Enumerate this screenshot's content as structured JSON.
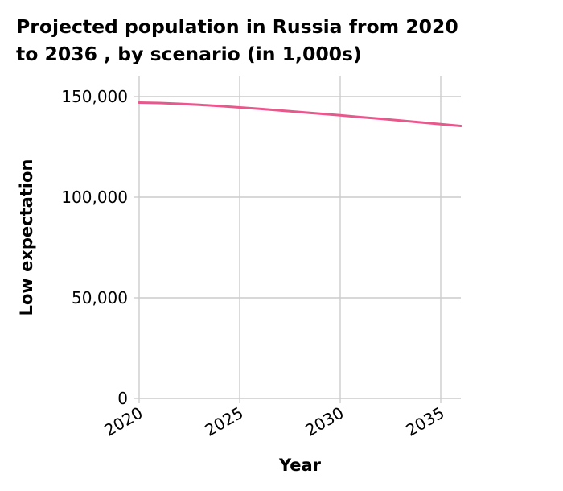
{
  "chart_data": {
    "type": "line",
    "title_lines": [
      "Projected population in Russia from 2020",
      "to 2036 , by scenario (in 1,000s)"
    ],
    "xlabel": "Year",
    "ylabel": "Low expectation",
    "xlim": [
      2020,
      2036
    ],
    "ylim": [
      0,
      150000
    ],
    "x_ticks": [
      2020,
      2025,
      2030,
      2035
    ],
    "x_tick_labels": [
      "2020",
      "2025",
      "2030",
      "2035"
    ],
    "y_ticks": [
      0,
      50000,
      100000,
      150000
    ],
    "y_tick_labels": [
      "0",
      "50,000",
      "100,000",
      "150,000"
    ],
    "grid": true,
    "legend": "none",
    "line_color": "#e8588c",
    "series": [
      {
        "x": [
          2020,
          2021,
          2022,
          2023,
          2024,
          2025,
          2026,
          2027,
          2028,
          2029,
          2030,
          2031,
          2032,
          2033,
          2034,
          2035,
          2036
        ],
        "values": [
          147000,
          146800,
          146400,
          145900,
          145300,
          144600,
          143900,
          143100,
          142300,
          141500,
          140700,
          139800,
          139000,
          138100,
          137200,
          136300,
          135400
        ]
      }
    ]
  }
}
